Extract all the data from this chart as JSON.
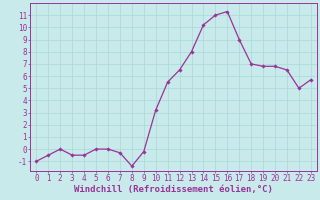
{
  "x": [
    0,
    1,
    2,
    3,
    4,
    5,
    6,
    7,
    8,
    9,
    10,
    11,
    12,
    13,
    14,
    15,
    16,
    17,
    18,
    19,
    20,
    21,
    22,
    23
  ],
  "y": [
    -1,
    -0.5,
    0,
    -0.5,
    -0.5,
    0,
    0,
    -0.3,
    -1.4,
    -0.2,
    3.2,
    5.5,
    6.5,
    8.0,
    10.2,
    11.0,
    11.3,
    9.0,
    7.0,
    6.8,
    6.8,
    6.5,
    5.0,
    5.7
  ],
  "line_color": "#993399",
  "marker": "D",
  "marker_size": 1.8,
  "background_color": "#c8eaea",
  "grid_color": "#aad8d8",
  "xlabel": "Windchill (Refroidissement éolien,°C)",
  "xlabel_fontsize": 6.5,
  "ytick_labels": [
    "-1",
    "0",
    "1",
    "2",
    "3",
    "4",
    "5",
    "6",
    "7",
    "8",
    "9",
    "10",
    "11"
  ],
  "ylim": [
    -1.8,
    12.0
  ],
  "xlim": [
    -0.5,
    23.5
  ],
  "yticks": [
    -1,
    0,
    1,
    2,
    3,
    4,
    5,
    6,
    7,
    8,
    9,
    10,
    11
  ],
  "xticks": [
    0,
    1,
    2,
    3,
    4,
    5,
    6,
    7,
    8,
    9,
    10,
    11,
    12,
    13,
    14,
    15,
    16,
    17,
    18,
    19,
    20,
    21,
    22,
    23
  ],
  "tick_fontsize": 5.5,
  "spine_color": "#993399",
  "line_width": 0.9
}
